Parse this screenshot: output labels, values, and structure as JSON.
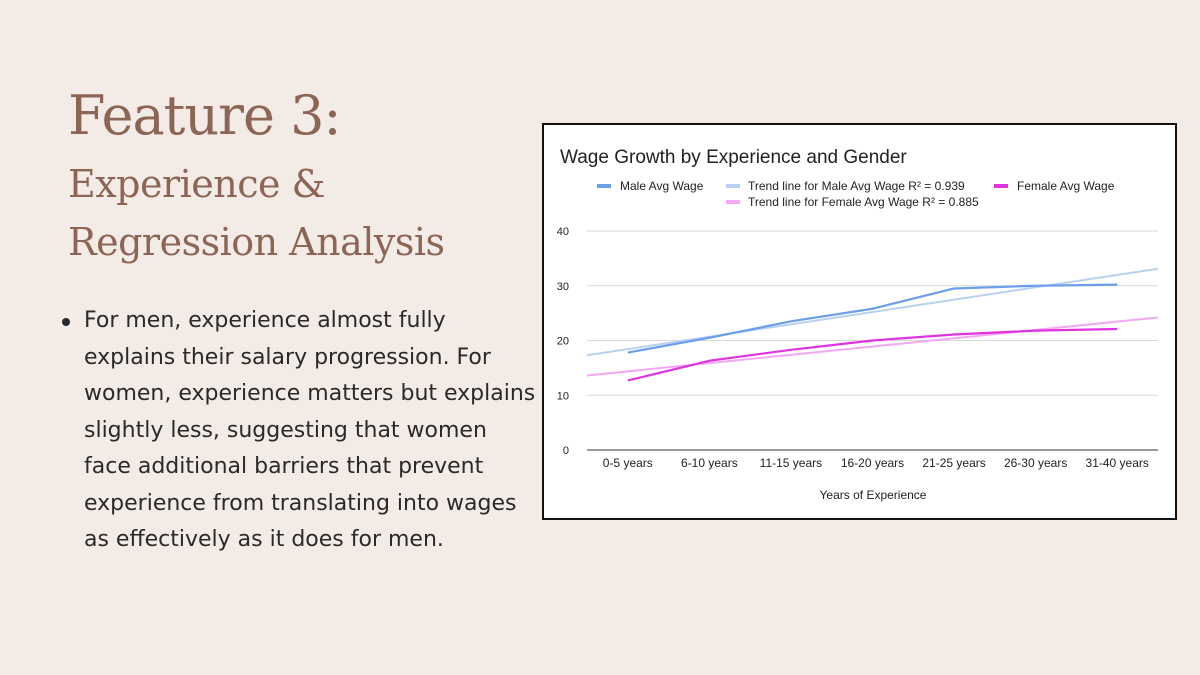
{
  "slide": {
    "title": "Feature 3:",
    "subtitle": "Experience & Regression Analysis",
    "bullets": [
      "For men, experience almost fully explains their salary progression. For women, experience matters but explains slightly less, suggesting that women face additional barriers that prevent experience from translating into wages as effectively as it does for men."
    ]
  },
  "chart_data": {
    "type": "line",
    "title": "Wage Growth by Experience and Gender",
    "xlabel": "Years of Experience",
    "ylabel": "",
    "categories": [
      "0-5 years",
      "6-10 years",
      "11-15 years",
      "16-20 years",
      "21-25 years",
      "26-30 years",
      "31-40 years"
    ],
    "ylim": [
      0,
      40
    ],
    "yticks": [
      0,
      10,
      20,
      30,
      40
    ],
    "grid": true,
    "legend_position": "top",
    "series": [
      {
        "name": "Male Avg Wage",
        "color": "#6d9eeb",
        "values": [
          17.8,
          20.5,
          23.5,
          25.8,
          29.5,
          30.0,
          30.2
        ]
      },
      {
        "name": "Female Avg Wage",
        "color": "#e033e0",
        "values": [
          12.7,
          16.3,
          18.3,
          20.0,
          21.1,
          21.8,
          22.1
        ]
      }
    ],
    "trendlines": [
      {
        "name": "Trend line for Male Avg Wage R² = 0.939",
        "color": "#b9d0f3",
        "y_start": 17.3,
        "y_end": 33.1
      },
      {
        "name": "Trend line for Female Avg Wage R² = 0.885",
        "color": "#f2a8f2",
        "y_start": 13.6,
        "y_end": 24.2
      }
    ]
  }
}
